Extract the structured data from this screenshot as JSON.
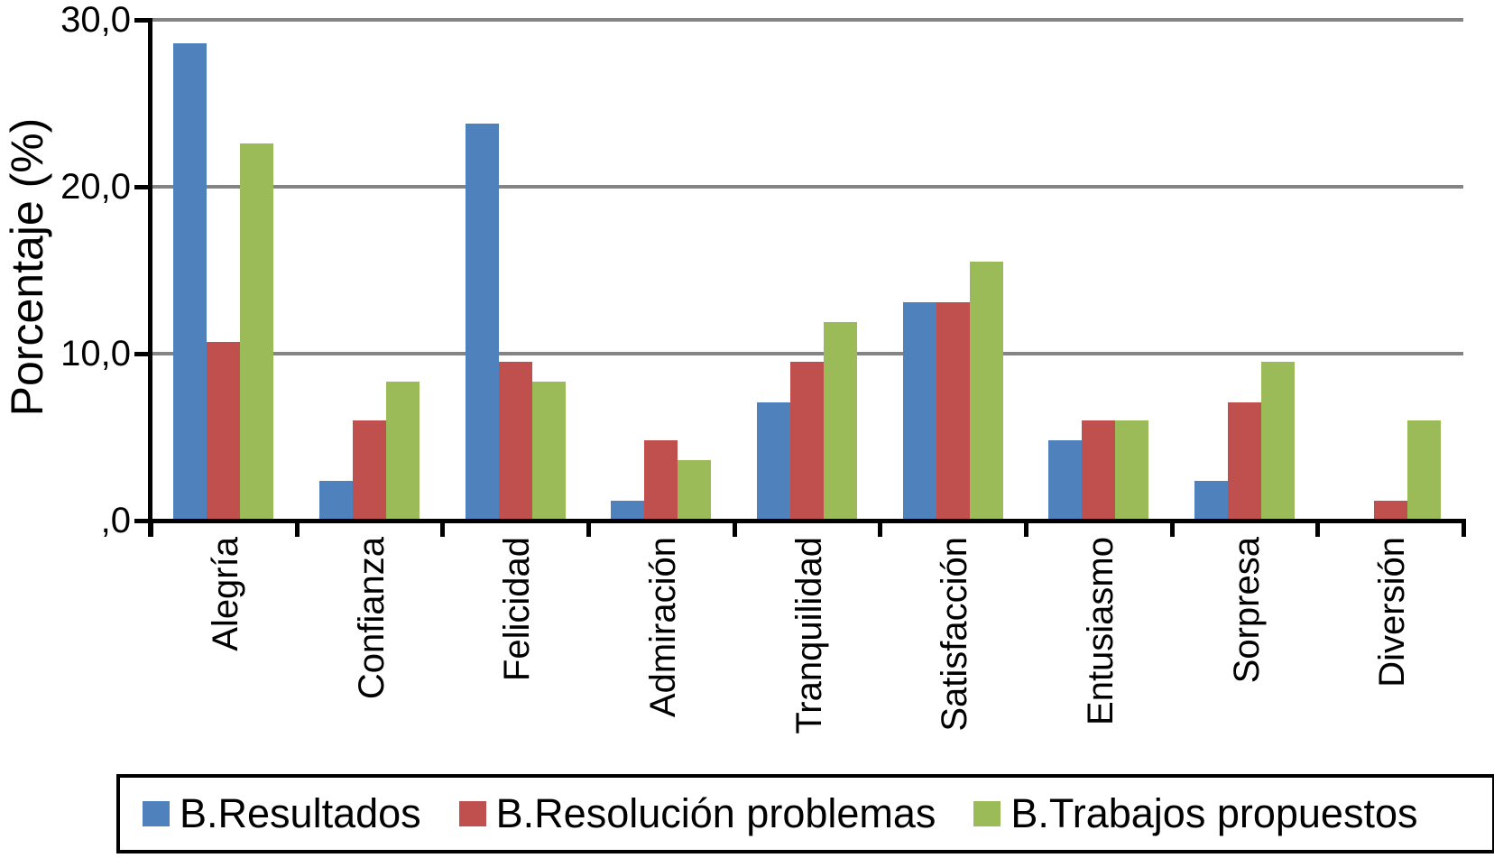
{
  "chart_data": {
    "type": "bar",
    "title": "",
    "xlabel": "",
    "ylabel": "Porcentaje (%)",
    "ylim": [
      0,
      30
    ],
    "grid": true,
    "legend_position": "bottom",
    "decimal_style": "comma",
    "yticks": [
      {
        "value": 0,
        "label": ",0"
      },
      {
        "value": 10,
        "label": "10,0"
      },
      {
        "value": 20,
        "label": "20,0"
      },
      {
        "value": 30,
        "label": "30,0"
      }
    ],
    "categories": [
      "Alegría",
      "Confianza",
      "Felicidad",
      "Admiración",
      "Tranquilidad",
      "Satisfacción",
      "Entusiasmo",
      "Sorpresa",
      "Diversión"
    ],
    "series": [
      {
        "name": "B.Resultados",
        "color": "#4F81BD",
        "values": [
          28.6,
          2.4,
          23.8,
          1.2,
          7.1,
          13.1,
          4.8,
          2.4,
          0.0
        ]
      },
      {
        "name": "B.Resolución problemas",
        "color": "#C0504D",
        "values": [
          10.7,
          6.0,
          9.5,
          4.8,
          9.5,
          13.1,
          6.0,
          7.1,
          1.2
        ]
      },
      {
        "name": "B.Trabajos propuestos",
        "color": "#9BBB59",
        "values": [
          22.6,
          8.3,
          8.3,
          3.6,
          11.9,
          15.5,
          6.0,
          9.5,
          6.0
        ]
      }
    ]
  },
  "colors": {
    "gridline": "#848484",
    "axis": "#000000",
    "background": "#FFFFFF",
    "legend_border": "#000000"
  }
}
